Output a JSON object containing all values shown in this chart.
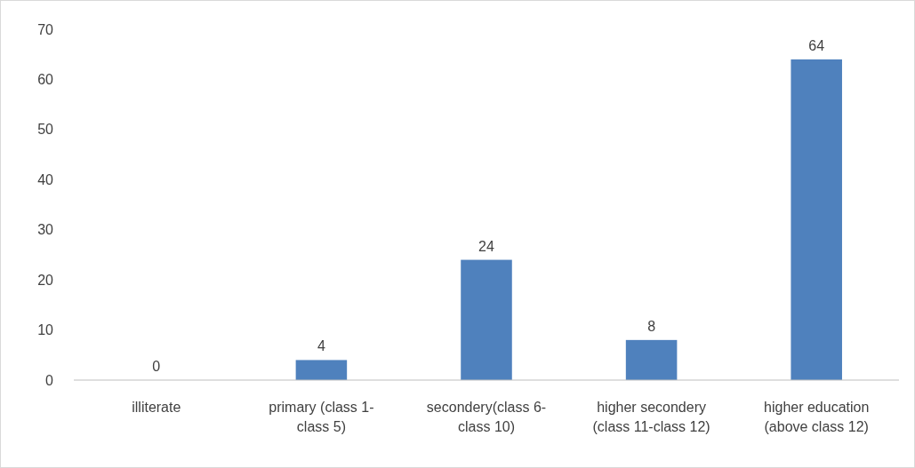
{
  "chart_data": {
    "type": "bar",
    "categories": [
      "illiterate",
      "primary (class 1-class 5)",
      "secondery(class 6-class 10)",
      "higher secondery (class 11-class 12)",
      "higher education (above class 12)"
    ],
    "values": [
      0,
      4,
      24,
      8,
      64
    ],
    "color": "#4f81bd",
    "ylim": [
      0,
      70
    ],
    "yticks": [
      0,
      10,
      20,
      30,
      40,
      50,
      60,
      70
    ],
    "grid": false,
    "data_labels": true
  }
}
